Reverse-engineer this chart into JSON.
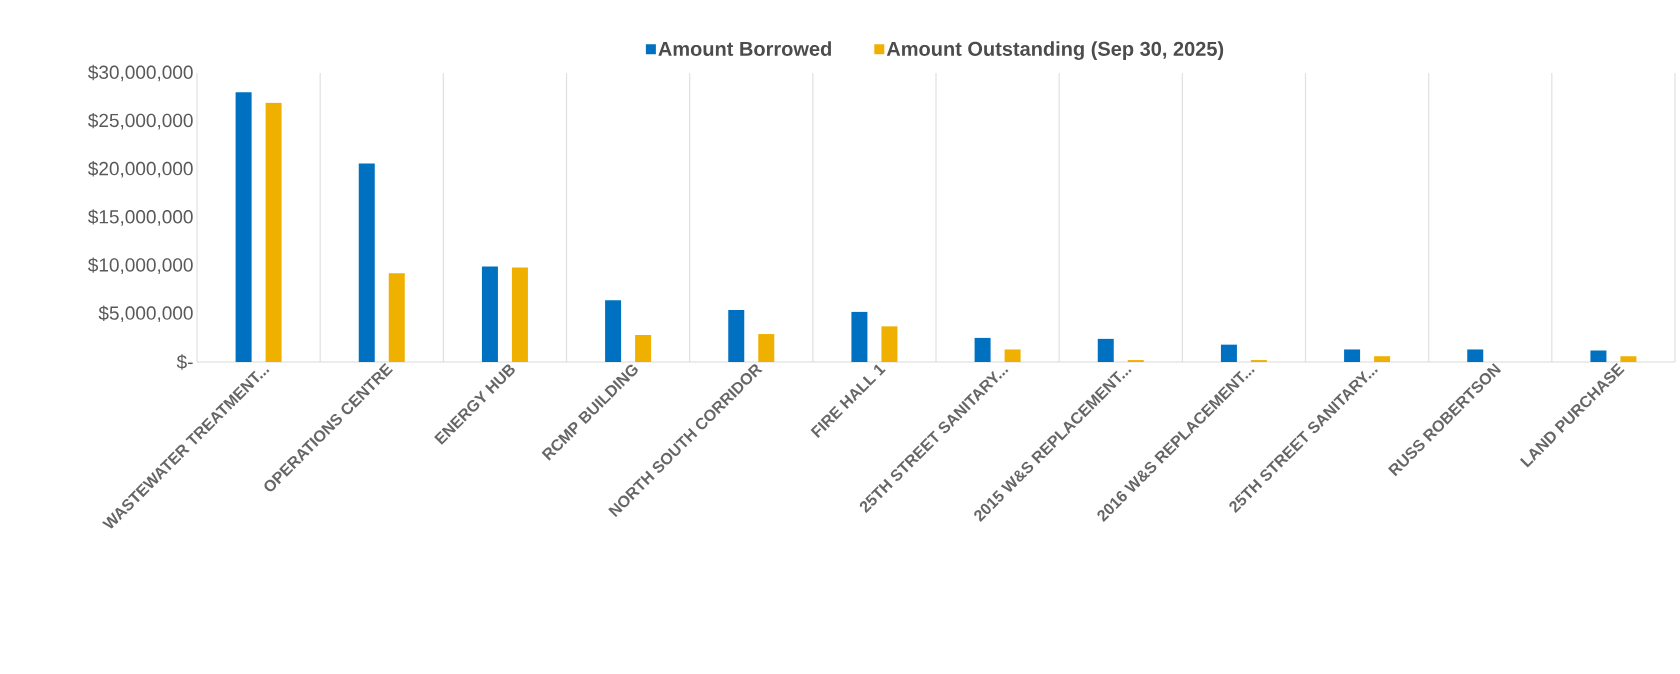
{
  "chart_data": {
    "type": "bar",
    "categories": [
      "WASTEWATER TREATMENT...",
      "OPERATIONS CENTRE",
      "ENERGY HUB",
      "RCMP BUILDING",
      "NORTH SOUTH CORRIDOR",
      "FIRE HALL 1",
      "25TH STREET SANITARY...",
      "2015 W&S REPLACEMENT...",
      "2016 W&S REPLACEMENT...",
      "25TH STREET SANITARY...",
      "RUSS ROBERTSON",
      "LAND PURCHASE"
    ],
    "series": [
      {
        "name": "Amount Borrowed",
        "color": "#0070c0",
        "values": [
          28000000,
          20600000,
          9900000,
          6400000,
          5400000,
          5200000,
          2500000,
          2400000,
          1800000,
          1300000,
          1300000,
          1200000
        ]
      },
      {
        "name": "Amount Outstanding (Sep 30, 2025)",
        "color": "#f0b000",
        "values": [
          26900000,
          9200000,
          9800000,
          2800000,
          2900000,
          3700000,
          1300000,
          200000,
          200000,
          600000,
          0,
          600000
        ]
      }
    ],
    "ylim": [
      0,
      30000000
    ],
    "yticks": [
      {
        "value": 0,
        "label": "$-"
      },
      {
        "value": 5000000,
        "label": "$5,000,000"
      },
      {
        "value": 10000000,
        "label": "$10,000,000"
      },
      {
        "value": 15000000,
        "label": "$15,000,000"
      },
      {
        "value": 20000000,
        "label": "$20,000,000"
      },
      {
        "value": 25000000,
        "label": "$25,000,000"
      },
      {
        "value": 30000000,
        "label": "$30,000,000"
      }
    ],
    "grid": "x",
    "legend": "top"
  }
}
